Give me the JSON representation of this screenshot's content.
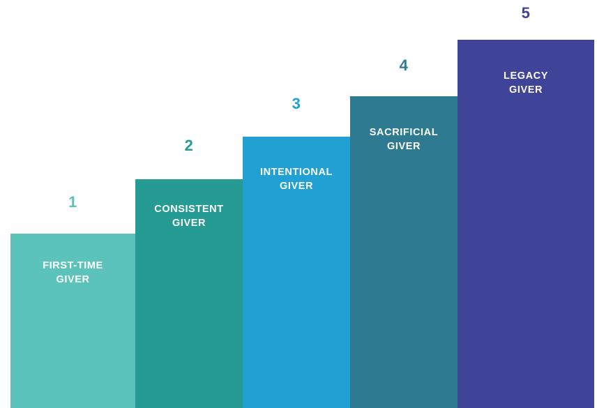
{
  "diagram": {
    "steps": [
      {
        "number": "1",
        "line1": "FIRST-TIME",
        "line2": "GIVER",
        "color": "#5BC3BA",
        "number_color": "#5BC3BA"
      },
      {
        "number": "2",
        "line1": "CONSISTENT",
        "line2": "GIVER",
        "color": "#259B93",
        "number_color": "#259B93"
      },
      {
        "number": "3",
        "line1": "INTENTIONAL",
        "line2": "GIVER",
        "color": "#20A0D3",
        "number_color": "#20A0D3"
      },
      {
        "number": "4",
        "line1": "SACRIFICIAL",
        "line2": "GIVER",
        "color": "#2D7A91",
        "number_color": "#2D7A91"
      },
      {
        "number": "5",
        "line1": "LEGACY",
        "line2": "GIVER",
        "color": "#3F4498",
        "number_color": "#3F4498"
      }
    ]
  }
}
